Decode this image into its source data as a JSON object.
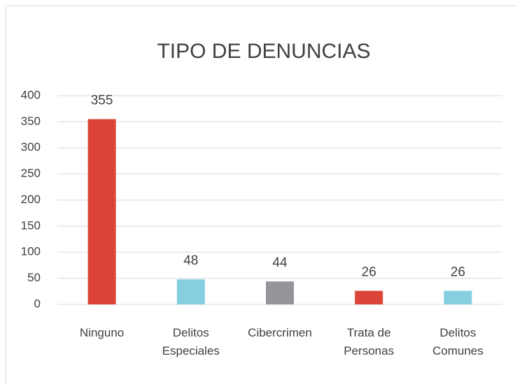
{
  "chart_data": {
    "type": "bar",
    "title": "TIPO DE DENUNCIAS",
    "categories": [
      "Ninguno",
      "Delitos Especiales",
      "Cibercrimen",
      "Trata de Personas",
      "Delitos Comunes"
    ],
    "values": [
      355,
      48,
      44,
      26,
      26
    ],
    "colors": [
      "#db4437",
      "#85cfe0",
      "#939598",
      "#db4437",
      "#85cfe0"
    ],
    "ylim": [
      0,
      400
    ],
    "yticks": [
      0,
      50,
      100,
      150,
      200,
      250,
      300,
      350,
      400
    ],
    "grid": true
  }
}
